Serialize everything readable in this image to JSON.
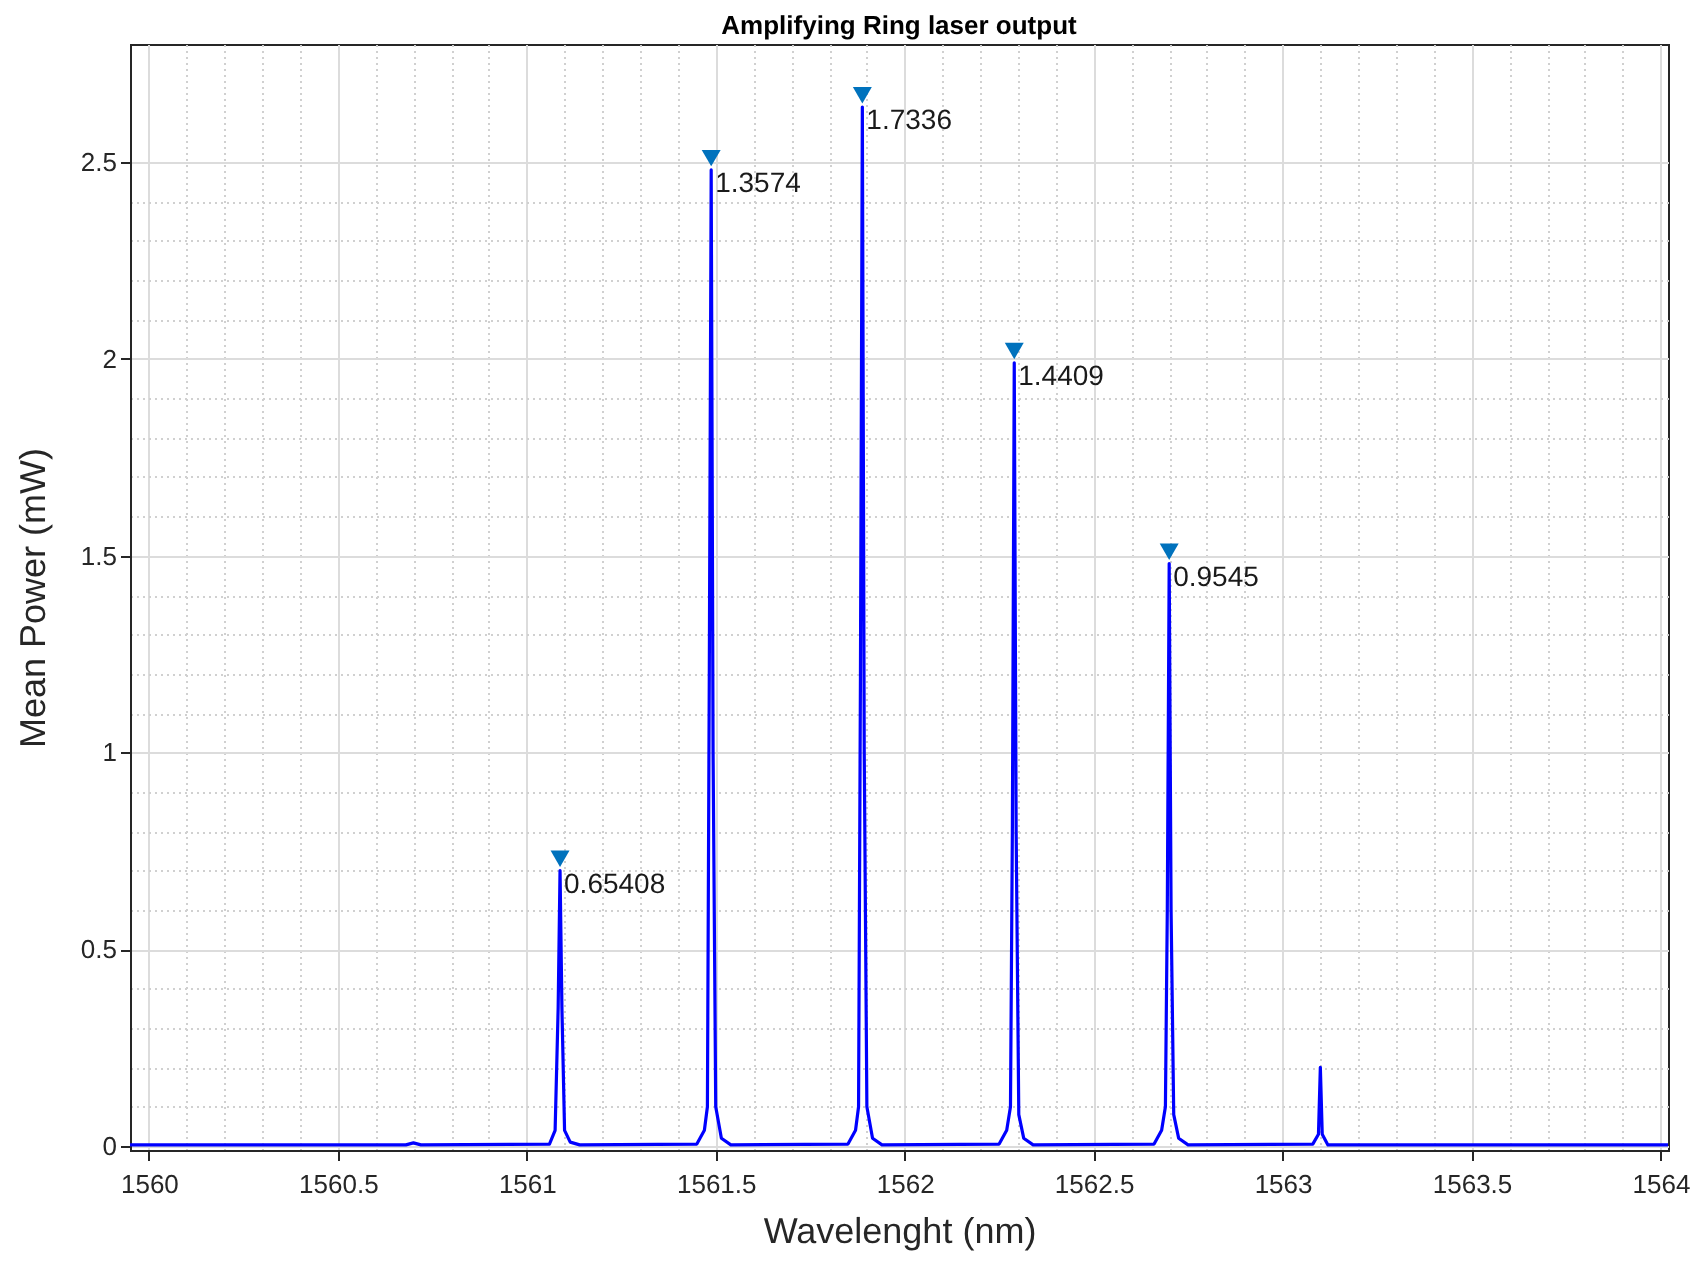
{
  "chart_data": {
    "type": "line",
    "title": "Amplifying Ring laser output",
    "xlabel": "Wavelenght (nm)",
    "ylabel": "Mean Power (mW)",
    "x": [
      1559.95,
      1560.68,
      1560.7,
      1560.72,
      1561.06,
      1561.075,
      1561.083,
      1561.088,
      1561.093,
      1561.1,
      1561.115,
      1561.14,
      1561.45,
      1561.47,
      1561.478,
      1561.483,
      1561.488,
      1561.493,
      1561.5,
      1561.515,
      1561.54,
      1561.85,
      1561.87,
      1561.878,
      1561.883,
      1561.888,
      1561.893,
      1561.9,
      1561.915,
      1561.94,
      1562.25,
      1562.27,
      1562.28,
      1562.285,
      1562.29,
      1562.295,
      1562.302,
      1562.315,
      1562.34,
      1562.66,
      1562.68,
      1562.69,
      1562.695,
      1562.7,
      1562.705,
      1562.712,
      1562.725,
      1562.75,
      1563.08,
      1563.095,
      1563.1,
      1563.105,
      1563.12,
      1564.02
    ],
    "series": [
      {
        "color": "#0000ff",
        "values": [
          0.003,
          0.003,
          0.008,
          0.003,
          0.005,
          0.04,
          0.35,
          0.7,
          0.35,
          0.04,
          0.01,
          0.003,
          0.005,
          0.04,
          0.1,
          1.2,
          2.48,
          1.0,
          0.1,
          0.02,
          0.003,
          0.005,
          0.04,
          0.1,
          1.2,
          2.64,
          1.0,
          0.1,
          0.02,
          0.003,
          0.005,
          0.04,
          0.1,
          0.8,
          1.99,
          0.8,
          0.08,
          0.02,
          0.003,
          0.005,
          0.04,
          0.1,
          0.6,
          1.48,
          0.6,
          0.08,
          0.02,
          0.003,
          0.005,
          0.03,
          0.2,
          0.03,
          0.003,
          0.003
        ]
      },
      {
        "type": "scatter",
        "marker": "triangle",
        "color": "#0072bd",
        "x": [
          1561.088,
          1561.488,
          1561.888,
          1562.29,
          1562.7
        ],
        "values": [
          0.73,
          2.51,
          2.67,
          2.02,
          1.51
        ]
      }
    ],
    "xlim": [
      1559.95,
      1564.02
    ],
    "xticks": [
      1560,
      1560.5,
      1561,
      1561.5,
      1562,
      1562.5,
      1563,
      1563.5,
      1564
    ],
    "ylim": [
      -0.01,
      2.8
    ],
    "yticks": [
      0,
      0.5,
      1,
      1.5,
      2,
      2.5
    ],
    "grid": true,
    "marker": "none",
    "line_style": "solid",
    "annotations": [
      {
        "text": "0.65408",
        "x": 1561.088,
        "y": 0.7
      },
      {
        "text": "1.3574",
        "x": 1561.488,
        "y": 2.48
      },
      {
        "text": "1.7336",
        "x": 1561.888,
        "y": 2.64
      },
      {
        "text": "1.4409",
        "x": 1562.29,
        "y": 1.99
      },
      {
        "text": "0.9545",
        "x": 1562.7,
        "y": 1.48
      }
    ]
  }
}
